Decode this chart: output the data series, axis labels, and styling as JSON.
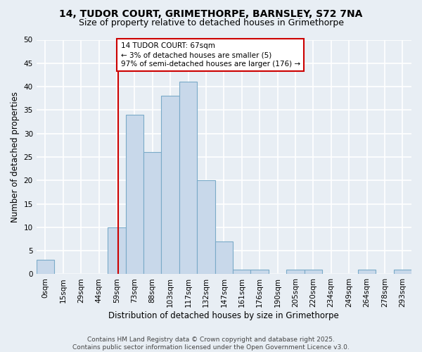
{
  "title": "14, TUDOR COURT, GRIMETHORPE, BARNSLEY, S72 7NA",
  "subtitle": "Size of property relative to detached houses in Grimethorpe",
  "xlabel": "Distribution of detached houses by size in Grimethorpe",
  "ylabel": "Number of detached properties",
  "bin_labels": [
    "0sqm",
    "15sqm",
    "29sqm",
    "44sqm",
    "59sqm",
    "73sqm",
    "88sqm",
    "103sqm",
    "117sqm",
    "132sqm",
    "147sqm",
    "161sqm",
    "176sqm",
    "190sqm",
    "205sqm",
    "220sqm",
    "234sqm",
    "249sqm",
    "264sqm",
    "278sqm",
    "293sqm"
  ],
  "bar_values": [
    3,
    0,
    0,
    0,
    10,
    34,
    26,
    38,
    41,
    20,
    7,
    1,
    1,
    0,
    1,
    1,
    0,
    0,
    1,
    0,
    1
  ],
  "bar_color": "#c8d8ea",
  "bar_edge_color": "#7aaac8",
  "bar_edge_width": 0.8,
  "ylim": [
    0,
    50
  ],
  "yticks": [
    0,
    5,
    10,
    15,
    20,
    25,
    30,
    35,
    40,
    45,
    50
  ],
  "annotation_text": "14 TUDOR COURT: 67sqm\n← 3% of detached houses are smaller (5)\n97% of semi-detached houses are larger (176) →",
  "annotation_box_color": "#ffffff",
  "annotation_box_edge": "#cc0000",
  "vline_color": "#cc0000",
  "footnote": "Contains HM Land Registry data © Crown copyright and database right 2025.\nContains public sector information licensed under the Open Government Licence v3.0.",
  "bg_color": "#e8eef4",
  "plot_bg_color": "#e8eef4",
  "grid_color": "#ffffff",
  "title_fontsize": 10,
  "subtitle_fontsize": 9,
  "axis_label_fontsize": 8.5,
  "tick_fontsize": 7.5,
  "annotation_fontsize": 7.5,
  "footnote_fontsize": 6.5
}
